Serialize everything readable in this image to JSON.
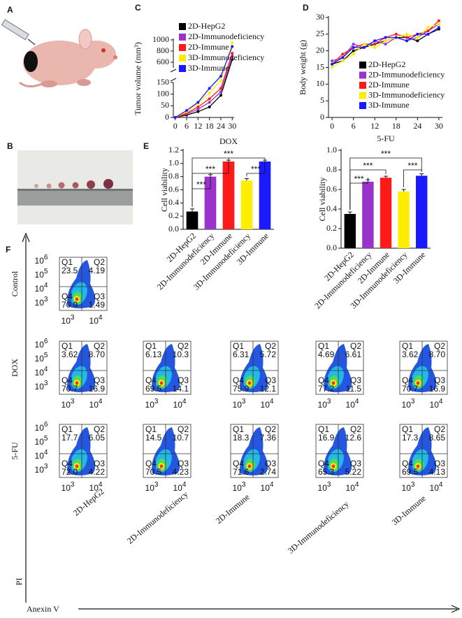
{
  "panel_labels": [
    "A",
    "B",
    "C",
    "D",
    "E",
    "F"
  ],
  "chart_data": [
    {
      "type": "line",
      "ylabel": "Tumor volume (mm³)",
      "x": [
        0,
        6,
        12,
        18,
        24,
        30
      ],
      "xlim": [
        -1,
        31
      ],
      "xticks": [
        0,
        6,
        12,
        18,
        24,
        30
      ],
      "ylim": [
        0,
        1000
      ],
      "ybreak": [
        150,
        500
      ],
      "yticks": [
        0,
        50,
        100,
        150,
        600,
        800,
        1000
      ],
      "series": [
        {
          "name": "2D-HepG2",
          "color": "#000000",
          "values": [
            0,
            10,
            25,
            45,
            95,
            650
          ]
        },
        {
          "name": "2D-Immunodeficiency",
          "color": "#9933cc",
          "values": [
            0,
            15,
            35,
            65,
            110,
            700
          ]
        },
        {
          "name": "2D-Immune",
          "color": "#ff1a1a",
          "values": [
            0,
            18,
            45,
            80,
            125,
            760
          ]
        },
        {
          "name": "3D-Immunodeficiency",
          "color": "#ffee00",
          "values": [
            0,
            25,
            60,
            105,
            200,
            950
          ]
        },
        {
          "name": "3D-Immune",
          "color": "#1a1aff",
          "values": [
            0,
            30,
            65,
            125,
            300,
            880
          ]
        }
      ]
    },
    {
      "type": "line",
      "ylabel": "Body weight (g)",
      "x": [
        0,
        3,
        6,
        9,
        12,
        15,
        18,
        21,
        24,
        27,
        30
      ],
      "xlim": [
        -1,
        31
      ],
      "xticks": [
        0,
        6,
        12,
        18,
        24,
        30
      ],
      "ylim": [
        0,
        30
      ],
      "yticks": [
        0,
        5,
        10,
        15,
        20,
        25,
        30
      ],
      "series": [
        {
          "name": "2D-HepG2",
          "color": "#000000",
          "values": [
            16,
            17,
            20,
            21,
            22,
            23,
            24,
            24,
            23,
            25,
            26.5
          ]
        },
        {
          "name": "2D-Immunodeficiency",
          "color": "#9933cc",
          "values": [
            17,
            18,
            22,
            21,
            23,
            22,
            24,
            23,
            24,
            26,
            28
          ]
        },
        {
          "name": "2D-Immune",
          "color": "#ff1a1a",
          "values": [
            16,
            19,
            21,
            22,
            22,
            24,
            25,
            24,
            25,
            26,
            29
          ]
        },
        {
          "name": "3D-Immunodeficiency",
          "color": "#ffee00",
          "values": [
            15,
            17,
            19,
            22,
            21,
            23,
            24,
            25,
            24,
            27,
            28
          ]
        },
        {
          "name": "3D-Immune",
          "color": "#1a1aff",
          "values": [
            16,
            18,
            21,
            21,
            23,
            24,
            24,
            23,
            25,
            25,
            27
          ]
        }
      ]
    },
    {
      "type": "bar",
      "title": "DOX",
      "ylabel": "Cell viability",
      "categories": [
        "2D-HepG2",
        "2D-Immunodeficiency",
        "2D-Immune",
        "3D-Immunodeficiency",
        "3D-Immune"
      ],
      "values": [
        0.27,
        0.8,
        1.03,
        0.74,
        1.03
      ],
      "errors": [
        0.04,
        0.03,
        0.02,
        0.03,
        0.02
      ],
      "colors": [
        "#000000",
        "#9933cc",
        "#ff1a1a",
        "#ffee00",
        "#1a1aff"
      ],
      "ylim": [
        0,
        1.2
      ],
      "yticks": [
        {
          "value": 0,
          "label": "0.0"
        },
        0.2,
        0.4,
        0.6,
        0.8,
        {
          "value": 1,
          "label": "1.0"
        },
        1.2
      ],
      "annotations": [
        "***",
        "***",
        "***",
        "***"
      ]
    },
    {
      "type": "bar",
      "title": "5-FU",
      "ylabel": "Cell viability",
      "categories": [
        "2D-HepG2",
        "2D-Immunodeficiency",
        "2D-Immune",
        "3D-Immunodeficiency",
        "3D-Immune"
      ],
      "values": [
        0.35,
        0.68,
        0.72,
        0.58,
        0.74
      ],
      "errors": [
        0.02,
        0.02,
        0.015,
        0.02,
        0.02
      ],
      "colors": [
        "#000000",
        "#9933cc",
        "#ff1a1a",
        "#ffee00",
        "#1a1aff"
      ],
      "ylim": [
        0,
        1.0
      ],
      "yticks": [
        {
          "value": 0,
          "label": "0.0"
        },
        0.2,
        0.4,
        0.6,
        0.8,
        {
          "value": 1,
          "label": "1.0"
        }
      ],
      "annotations": [
        "***",
        "***",
        "***",
        "***"
      ]
    }
  ],
  "flow": {
    "ylabel": "PI",
    "xlabel": "Anexin V",
    "quadrant_names": [
      "Q1",
      "Q2",
      "Q3",
      "Q4"
    ],
    "xticks": [
      {
        "base": "10",
        "exp": "3"
      },
      {
        "base": "10",
        "exp": "4"
      }
    ],
    "yticks": [
      {
        "base": "10",
        "exp": "6"
      },
      {
        "base": "10",
        "exp": "5"
      },
      {
        "base": "10",
        "exp": "4"
      },
      {
        "base": "10",
        "exp": "3"
      }
    ],
    "columns": [
      "2D-HepG2",
      "2D-Immunodeficiency",
      "2D-Immune",
      "3D-Immunodeficiency",
      "3D-Immune"
    ],
    "rows": [
      {
        "label": "Control",
        "plots": [
          [
            "23.5",
            "4.19",
            "1.49",
            "70.9"
          ]
        ]
      },
      {
        "label": "DOX",
        "plots": [
          [
            "3.62",
            "8.70",
            "16.9",
            "70.7"
          ],
          [
            "6.13",
            "10.3",
            "14.1",
            "69.5"
          ],
          [
            "6.31",
            "5.72",
            "12.1",
            "75.9"
          ],
          [
            "4.69",
            "6.61",
            "11.5",
            "77.2"
          ],
          [
            "3.62",
            "8.70",
            "16.9",
            "70.7"
          ]
        ]
      },
      {
        "label": "5-FU",
        "plots": [
          [
            "17.7",
            "6.05",
            "4.22",
            "72.0"
          ],
          [
            "14.5",
            "10.7",
            "4.23",
            "70.5"
          ],
          [
            "18.3",
            "7.36",
            "2.74",
            "71.6"
          ],
          [
            "16.9",
            "12.6",
            "5.22",
            "65.3"
          ],
          [
            "17.3",
            "8.65",
            "4.13",
            "69.5"
          ]
        ]
      }
    ]
  }
}
